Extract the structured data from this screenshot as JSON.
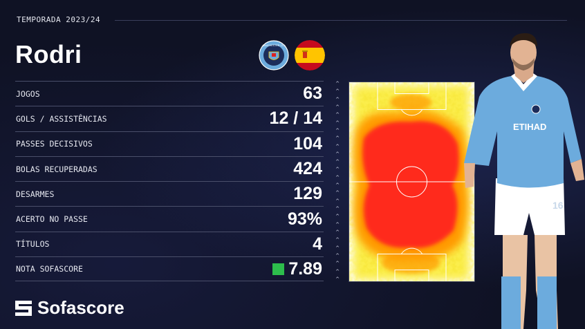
{
  "header": {
    "season_label": "TEMPORADA 2023/24",
    "player_name": "Rodri"
  },
  "badges": [
    {
      "name": "manchester-city-crest",
      "text": "MANCHESTER CITY"
    },
    {
      "name": "spain-flag"
    }
  ],
  "stats": [
    {
      "label": "JOGOS",
      "value": "63"
    },
    {
      "label": "GOLS / ASSISTÊNCIAS",
      "value": "12 / 14"
    },
    {
      "label": "PASSES DECISIVOS",
      "value": "104"
    },
    {
      "label": "BOLAS RECUPERADAS",
      "value": "424"
    },
    {
      "label": "DESARMES",
      "value": "129"
    },
    {
      "label": "ACERTO NO PASSE",
      "value": "93%"
    },
    {
      "label": "TÍTULOS",
      "value": "4"
    },
    {
      "label": "NOTA SOFASCORE",
      "value": "7.89",
      "rating_color": "#2dbd4c"
    }
  ],
  "heatmap": {
    "colors": {
      "hot": "#ff2a1a",
      "warm": "#ff9a00",
      "cool": "#f7e51a",
      "pitch": "#ffffff"
    }
  },
  "jersey": {
    "sponsor": "ETIHAD",
    "number": "16"
  },
  "brand": {
    "name": "Sofascore"
  },
  "colors": {
    "background": "#0f1224",
    "accent": "#6cabdd"
  }
}
